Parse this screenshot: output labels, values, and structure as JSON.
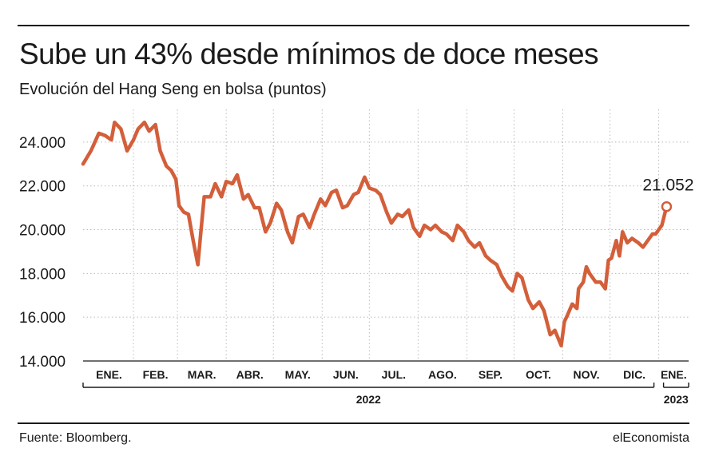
{
  "header": {
    "title": "Sube un 43% desde mínimos de doce meses",
    "subtitle": "Evolución del Hang Seng en bolsa (puntos)"
  },
  "footer": {
    "source": "Fuente: Bloomberg.",
    "brand": "elEconomista"
  },
  "colors": {
    "line": "#d35f3a",
    "grid": "#bbbbbb",
    "text": "#1a1a1a"
  },
  "chart_data": {
    "type": "line",
    "title": "Sube un 43% desde mínimos de doce meses",
    "subtitle": "Evolución del Hang Seng en bolsa (puntos)",
    "ylabel": "",
    "xlabel": "",
    "ylim": [
      14000,
      25200
    ],
    "yticks": [
      14000,
      16000,
      18000,
      20000,
      22000,
      24000
    ],
    "ytick_labels": [
      "14.000",
      "16.000",
      "18.000",
      "20.000",
      "22.000",
      "24.000"
    ],
    "grid": "dotted-vertical-and-horizontal",
    "months": [
      {
        "label": "ENE.",
        "year": "2022"
      },
      {
        "label": "FEB.",
        "year": "2022"
      },
      {
        "label": "MAR.",
        "year": "2022"
      },
      {
        "label": "ABR.",
        "year": "2022"
      },
      {
        "label": "MAY.",
        "year": "2022"
      },
      {
        "label": "JUN.",
        "year": "2022"
      },
      {
        "label": "JUL.",
        "year": "2022"
      },
      {
        "label": "AGO.",
        "year": "2022"
      },
      {
        "label": "SEP.",
        "year": "2022"
      },
      {
        "label": "OCT.",
        "year": "2022"
      },
      {
        "label": "NOV.",
        "year": "2022"
      },
      {
        "label": "DIC.",
        "year": "2022"
      },
      {
        "label": "ENE.",
        "year": "2023"
      }
    ],
    "years": [
      {
        "label": "2022",
        "from_month": 0,
        "to_month": 11
      },
      {
        "label": "2023",
        "from_month": 12,
        "to_month": 12
      }
    ],
    "last_value_label": "21.052",
    "series": [
      {
        "values": [
          [
            "2021-12-31",
            23000
          ],
          [
            "2022-01-05",
            23600
          ],
          [
            "2022-01-10",
            24400
          ],
          [
            "2022-01-14",
            24300
          ],
          [
            "2022-01-18",
            24100
          ],
          [
            "2022-01-20",
            24900
          ],
          [
            "2022-01-24",
            24600
          ],
          [
            "2022-01-28",
            23600
          ],
          [
            "2022-02-01",
            24100
          ],
          [
            "2022-02-04",
            24600
          ],
          [
            "2022-02-08",
            24900
          ],
          [
            "2022-02-11",
            24500
          ],
          [
            "2022-02-15",
            24800
          ],
          [
            "2022-02-18",
            23600
          ],
          [
            "2022-02-22",
            22900
          ],
          [
            "2022-02-25",
            22700
          ],
          [
            "2022-02-28",
            22300
          ],
          [
            "2022-03-02",
            21100
          ],
          [
            "2022-03-05",
            20800
          ],
          [
            "2022-03-08",
            20700
          ],
          [
            "2022-03-11",
            19500
          ],
          [
            "2022-03-14",
            18400
          ],
          [
            "2022-03-16",
            20000
          ],
          [
            "2022-03-18",
            21500
          ],
          [
            "2022-03-22",
            21500
          ],
          [
            "2022-03-25",
            22100
          ],
          [
            "2022-03-29",
            21500
          ],
          [
            "2022-04-01",
            22200
          ],
          [
            "2022-04-05",
            22100
          ],
          [
            "2022-04-08",
            22500
          ],
          [
            "2022-04-12",
            21400
          ],
          [
            "2022-04-15",
            21600
          ],
          [
            "2022-04-19",
            21000
          ],
          [
            "2022-04-22",
            21000
          ],
          [
            "2022-04-26",
            19900
          ],
          [
            "2022-04-29",
            20300
          ],
          [
            "2022-05-03",
            21200
          ],
          [
            "2022-05-06",
            20900
          ],
          [
            "2022-05-10",
            19900
          ],
          [
            "2022-05-13",
            19400
          ],
          [
            "2022-05-17",
            20600
          ],
          [
            "2022-05-20",
            20700
          ],
          [
            "2022-05-24",
            20100
          ],
          [
            "2022-05-27",
            20700
          ],
          [
            "2022-05-31",
            21400
          ],
          [
            "2022-06-03",
            21100
          ],
          [
            "2022-06-07",
            21700
          ],
          [
            "2022-06-10",
            21800
          ],
          [
            "2022-06-14",
            21000
          ],
          [
            "2022-06-17",
            21100
          ],
          [
            "2022-06-21",
            21600
          ],
          [
            "2022-06-24",
            21700
          ],
          [
            "2022-06-28",
            22400
          ],
          [
            "2022-07-01",
            21900
          ],
          [
            "2022-07-05",
            21800
          ],
          [
            "2022-07-08",
            21600
          ],
          [
            "2022-07-12",
            20800
          ],
          [
            "2022-07-15",
            20300
          ],
          [
            "2022-07-19",
            20700
          ],
          [
            "2022-07-22",
            20600
          ],
          [
            "2022-07-26",
            20900
          ],
          [
            "2022-07-29",
            20100
          ],
          [
            "2022-08-02",
            19700
          ],
          [
            "2022-08-05",
            20200
          ],
          [
            "2022-08-09",
            20000
          ],
          [
            "2022-08-12",
            20200
          ],
          [
            "2022-08-16",
            19900
          ],
          [
            "2022-08-19",
            19800
          ],
          [
            "2022-08-23",
            19500
          ],
          [
            "2022-08-26",
            20200
          ],
          [
            "2022-08-30",
            19900
          ],
          [
            "2022-09-02",
            19500
          ],
          [
            "2022-09-06",
            19200
          ],
          [
            "2022-09-09",
            19400
          ],
          [
            "2022-09-13",
            18800
          ],
          [
            "2022-09-16",
            18600
          ],
          [
            "2022-09-20",
            18400
          ],
          [
            "2022-09-23",
            17900
          ],
          [
            "2022-09-27",
            17400
          ],
          [
            "2022-09-30",
            17200
          ],
          [
            "2022-10-03",
            18000
          ],
          [
            "2022-10-06",
            17800
          ],
          [
            "2022-10-10",
            16800
          ],
          [
            "2022-10-13",
            16400
          ],
          [
            "2022-10-17",
            16700
          ],
          [
            "2022-10-20",
            16300
          ],
          [
            "2022-10-24",
            15200
          ],
          [
            "2022-10-27",
            15400
          ],
          [
            "2022-10-31",
            14700
          ],
          [
            "2022-11-02",
            15800
          ],
          [
            "2022-11-04",
            16100
          ],
          [
            "2022-11-07",
            16600
          ],
          [
            "2022-11-10",
            16400
          ],
          [
            "2022-11-11",
            17300
          ],
          [
            "2022-11-14",
            17600
          ],
          [
            "2022-11-16",
            18300
          ],
          [
            "2022-11-18",
            18000
          ],
          [
            "2022-11-22",
            17600
          ],
          [
            "2022-11-25",
            17600
          ],
          [
            "2022-11-28",
            17300
          ],
          [
            "2022-11-30",
            18600
          ],
          [
            "2022-12-02",
            18700
          ],
          [
            "2022-12-05",
            19500
          ],
          [
            "2022-12-07",
            18800
          ],
          [
            "2022-12-09",
            19900
          ],
          [
            "2022-12-12",
            19400
          ],
          [
            "2022-12-15",
            19600
          ],
          [
            "2022-12-19",
            19400
          ],
          [
            "2022-12-22",
            19200
          ],
          [
            "2022-12-28",
            19800
          ],
          [
            "2022-12-30",
            19800
          ],
          [
            "2023-01-03",
            20200
          ],
          [
            "2023-01-06",
            21052
          ]
        ]
      }
    ]
  }
}
